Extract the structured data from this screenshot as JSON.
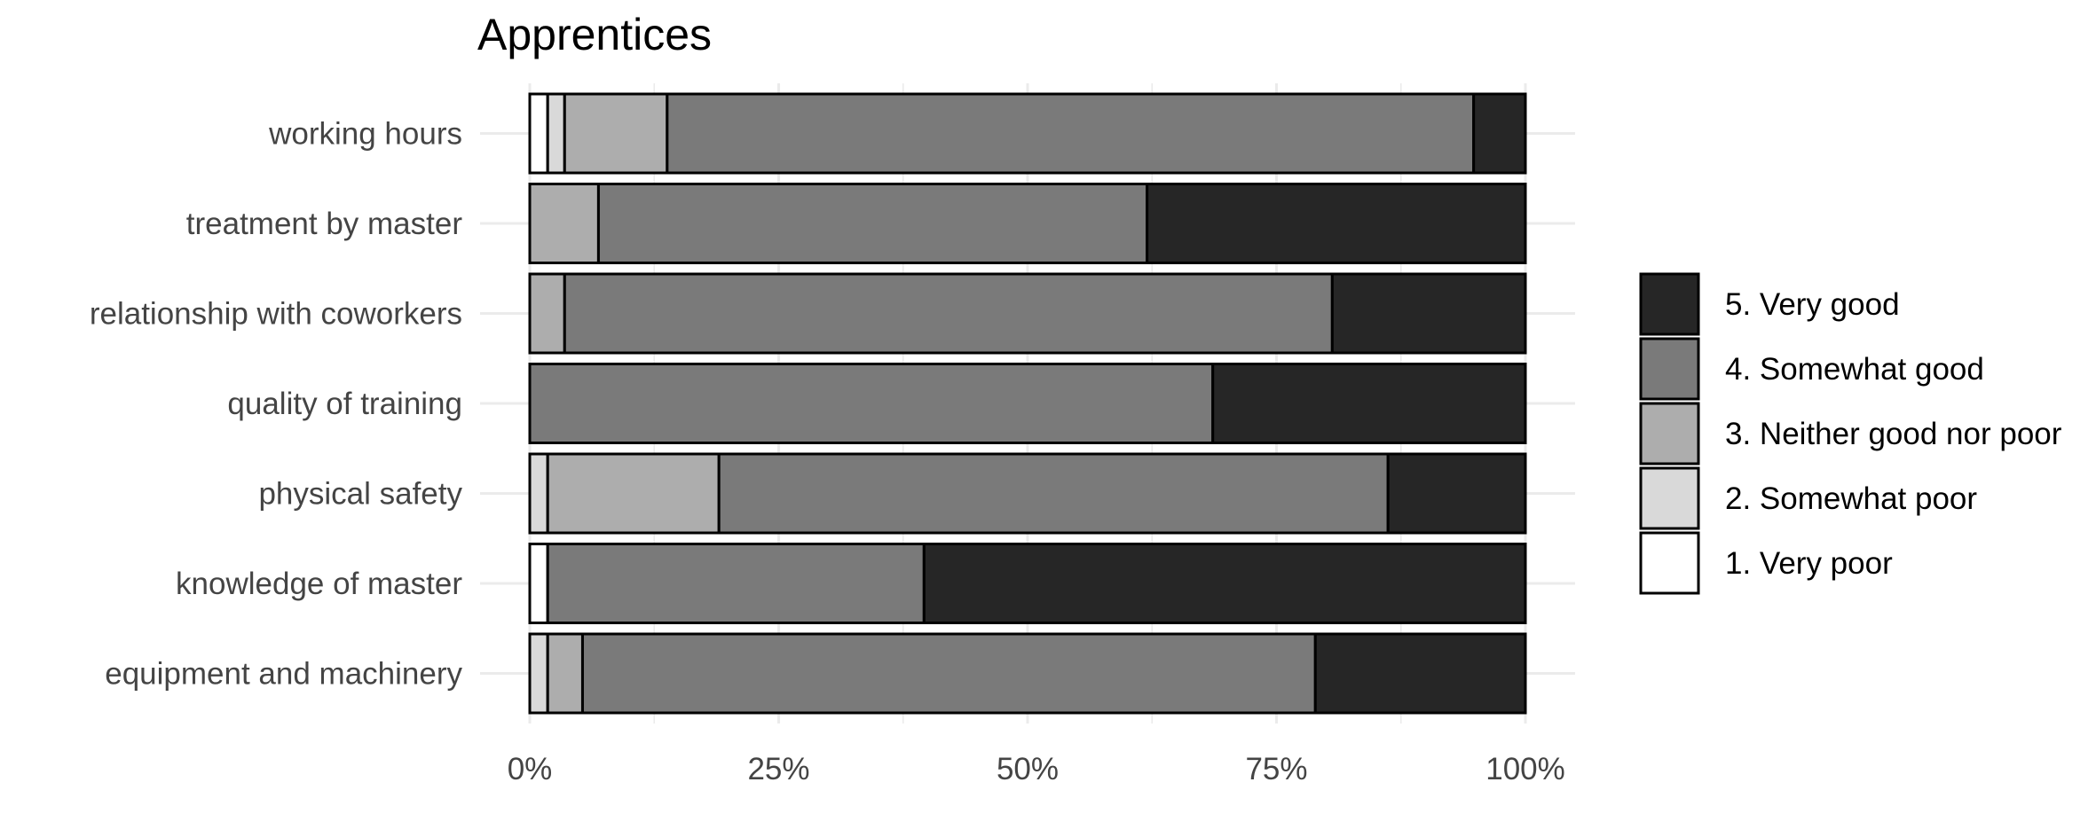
{
  "chart_data": {
    "type": "bar",
    "orientation": "horizontal",
    "stacked": true,
    "normalized": true,
    "title": "Apprentices",
    "xlabel": "",
    "ylabel": "",
    "xlim": [
      0,
      1
    ],
    "x_ticks": [
      "0%",
      "25%",
      "50%",
      "75%",
      "100%"
    ],
    "grid": true,
    "legend_position": "right",
    "categories": [
      "working hours",
      "treatment by master",
      "relationship with coworkers",
      "quality of training",
      "physical safety",
      "knowledge of master",
      "equipment and machinery"
    ],
    "series": [
      {
        "name": "1. Very poor",
        "color": "#ffffff",
        "values": [
          0.018,
          0.0,
          0.0,
          0.0,
          0.0,
          0.018,
          0.0
        ]
      },
      {
        "name": "2. Somewhat poor",
        "color": "#d9d9d9",
        "values": [
          0.017,
          0.0,
          0.0,
          0.0,
          0.018,
          0.0,
          0.018
        ]
      },
      {
        "name": "3. Neither good nor poor",
        "color": "#adadad",
        "values": [
          0.103,
          0.069,
          0.035,
          0.0,
          0.172,
          0.0,
          0.035
        ]
      },
      {
        "name": "4. Somewhat good",
        "color": "#7a7a7a",
        "values": [
          0.81,
          0.551,
          0.771,
          0.686,
          0.672,
          0.378,
          0.736
        ]
      },
      {
        "name": "5. Very good",
        "color": "#262626",
        "values": [
          0.052,
          0.38,
          0.194,
          0.314,
          0.138,
          0.604,
          0.211
        ]
      }
    ],
    "legend_order": [
      "5. Very good",
      "4. Somewhat good",
      "3. Neither good nor poor",
      "2. Somewhat poor",
      "1. Very poor"
    ]
  }
}
